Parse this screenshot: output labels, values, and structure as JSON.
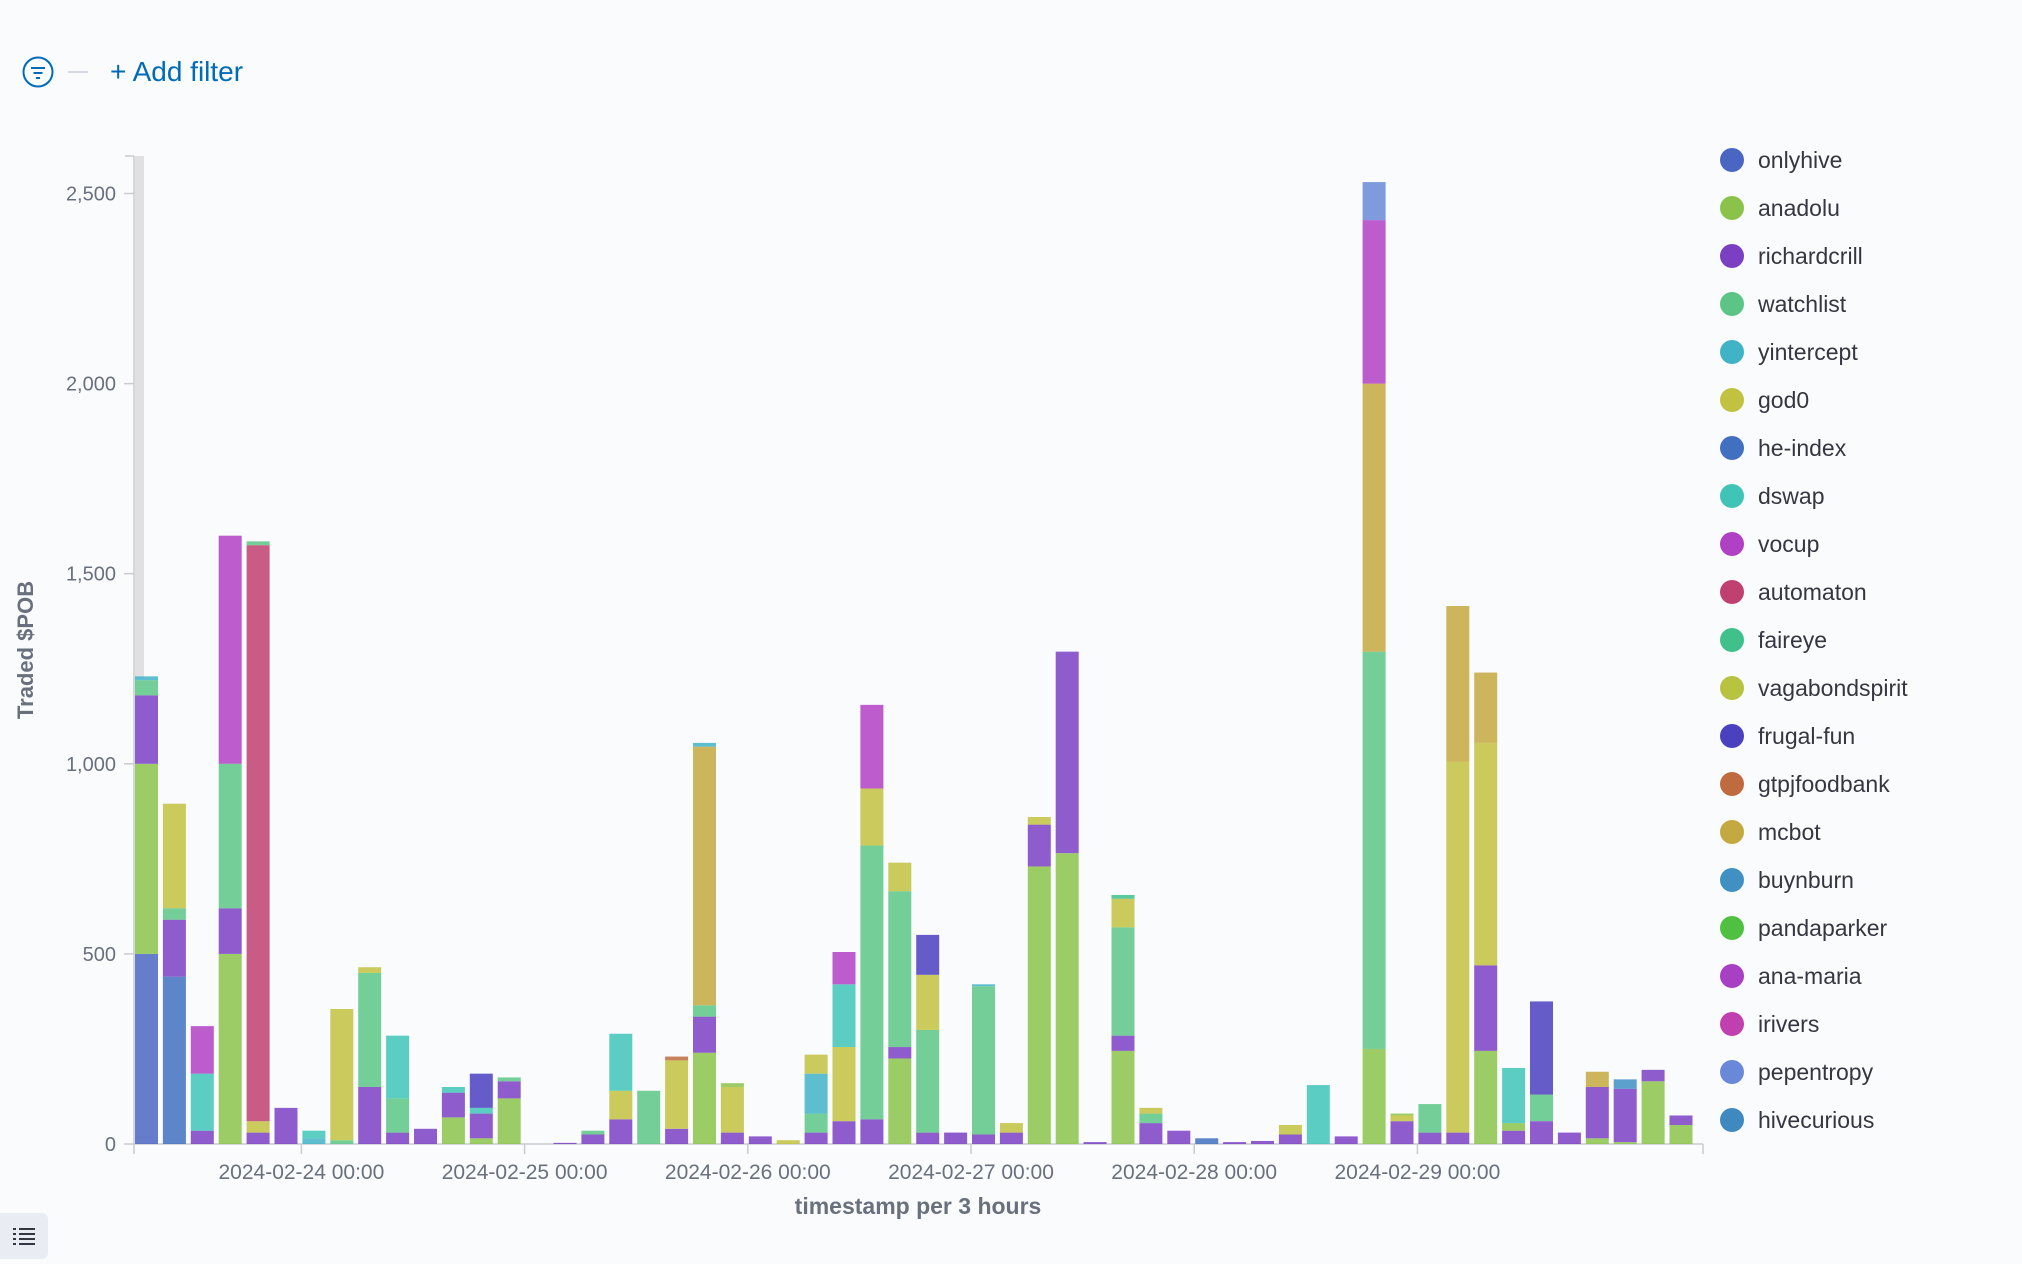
{
  "filter_bar": {
    "add_filter_label": "+ Add filter"
  },
  "chart_data": {
    "type": "bar",
    "stacked": true,
    "ylabel": "Traded $POB",
    "xlabel": "timestamp per 3 hours",
    "ylim": [
      0,
      2600
    ],
    "y_ticks": [
      0,
      500,
      1000,
      1500,
      2000,
      2500
    ],
    "y_tick_labels": [
      "0",
      "500",
      "1,000",
      "1,500",
      "2,000",
      "2,500"
    ],
    "x_start": "2024-02-23 06:00",
    "interval_hours": 3,
    "x_tick_labels": [
      "2024-02-24 00:00",
      "2024-02-25 00:00",
      "2024-02-26 00:00",
      "2024-02-27 00:00",
      "2024-02-28 00:00",
      "2024-02-29 00:00"
    ],
    "x_tick_bar_index": [
      6,
      14,
      22,
      30,
      38,
      46
    ],
    "legend_position": "right",
    "series": [
      {
        "name": "onlyhive",
        "color": "#4a66c2"
      },
      {
        "name": "anadolu",
        "color": "#8bc34a"
      },
      {
        "name": "richardcrill",
        "color": "#7b3fc4"
      },
      {
        "name": "watchlist",
        "color": "#5cc585"
      },
      {
        "name": "yintercept",
        "color": "#40b3c6"
      },
      {
        "name": "god0",
        "color": "#c1c23f"
      },
      {
        "name": "he-index",
        "color": "#4170c0"
      },
      {
        "name": "dswap",
        "color": "#40c4b8"
      },
      {
        "name": "vocup",
        "color": "#b040c4"
      },
      {
        "name": "automaton",
        "color": "#c04070"
      },
      {
        "name": "faireye",
        "color": "#40c08a"
      },
      {
        "name": "vagabondspirit",
        "color": "#b8c440"
      },
      {
        "name": "frugal-fun",
        "color": "#4a40c0"
      },
      {
        "name": "gtpjfoodbank",
        "color": "#c06a40"
      },
      {
        "name": "mcbot",
        "color": "#c4a840"
      },
      {
        "name": "buynburn",
        "color": "#4090c4"
      },
      {
        "name": "pandaparker",
        "color": "#50c040"
      },
      {
        "name": "ana-maria",
        "color": "#a840c4"
      },
      {
        "name": "irivers",
        "color": "#c040b0"
      },
      {
        "name": "pepentropy",
        "color": "#6a88d8"
      },
      {
        "name": "hivecurious",
        "color": "#4088c0"
      }
    ],
    "bars": [
      {
        "onlyhive": 500,
        "anadolu": 500,
        "richardcrill": 180,
        "watchlist": 40,
        "yintercept": 10
      },
      {
        "he-index": 440,
        "richardcrill": 150,
        "watchlist": 30,
        "god0": 275
      },
      {
        "richardcrill": 35,
        "dswap": 150,
        "vocup": 125
      },
      {
        "anadolu": 500,
        "richardcrill": 120,
        "watchlist": 380,
        "vocup": 600
      },
      {
        "richardcrill": 30,
        "god0": 30,
        "automaton": 1515,
        "watchlist": 10
      },
      {
        "richardcrill": 95
      },
      {
        "yintercept": 15,
        "dswap": 20
      },
      {
        "watchlist": 10,
        "god0": 345
      },
      {
        "richardcrill": 150,
        "watchlist": 300,
        "god0": 15
      },
      {
        "richardcrill": 30,
        "watchlist": 90,
        "dswap": 165
      },
      {
        "richardcrill": 40
      },
      {
        "anadolu": 70,
        "richardcrill": 65,
        "dswap": 15
      },
      {
        "anadolu": 15,
        "richardcrill": 65,
        "dswap": 15,
        "frugal-fun": 90
      },
      {
        "anadolu": 120,
        "richardcrill": 45,
        "watchlist": 10
      },
      {},
      {
        "richardcrill": 3
      },
      {
        "richardcrill": 25,
        "watchlist": 10
      },
      {
        "richardcrill": 65,
        "god0": 75,
        "dswap": 150
      },
      {
        "watchlist": 140
      },
      {
        "richardcrill": 40,
        "god0": 180,
        "gtpjfoodbank": 10
      },
      {
        "anadolu": 240,
        "richardcrill": 95,
        "watchlist": 30,
        "mcbot": 680,
        "yintercept": 10
      },
      {
        "richardcrill": 30,
        "god0": 120,
        "anadolu": 10
      },
      {
        "richardcrill": 20
      },
      {
        "god0": 10
      },
      {
        "richardcrill": 30,
        "watchlist": 50,
        "yintercept": 105,
        "god0": 50
      },
      {
        "richardcrill": 60,
        "god0": 195,
        "dswap": 165,
        "vocup": 85
      },
      {
        "richardcrill": 65,
        "watchlist": 720,
        "god0": 150,
        "vocup": 220
      },
      {
        "anadolu": 225,
        "richardcrill": 30,
        "watchlist": 410,
        "god0": 75
      },
      {
        "richardcrill": 30,
        "watchlist": 270,
        "god0": 145,
        "frugal-fun": 105
      },
      {
        "richardcrill": 30
      },
      {
        "richardcrill": 25,
        "watchlist": 390,
        "yintercept": 5
      },
      {
        "richardcrill": 30,
        "god0": 25
      },
      {
        "anadolu": 730,
        "richardcrill": 110,
        "god0": 20
      },
      {
        "anadolu": 765,
        "richardcrill": 530
      },
      {
        "richardcrill": 5
      },
      {
        "anadolu": 245,
        "richardcrill": 40,
        "watchlist": 285,
        "god0": 75,
        "faireye": 10
      },
      {
        "richardcrill": 55,
        "watchlist": 25,
        "god0": 15
      },
      {
        "richardcrill": 35
      },
      {
        "he-index": 15
      },
      {
        "richardcrill": 5
      },
      {
        "richardcrill": 8
      },
      {
        "richardcrill": 25,
        "god0": 25
      },
      {
        "dswap": 155
      },
      {
        "richardcrill": 20
      },
      {
        "anadolu": 250,
        "watchlist": 1045,
        "mcbot": 705,
        "vocup": 430,
        "pepentropy": 100
      },
      {
        "richardcrill": 60,
        "god0": 15,
        "anadolu": 5
      },
      {
        "richardcrill": 30,
        "watchlist": 75
      },
      {
        "richardcrill": 30,
        "god0": 975,
        "mcbot": 410
      },
      {
        "anadolu": 245,
        "richardcrill": 225,
        "god0": 585,
        "mcbot": 185
      },
      {
        "richardcrill": 35,
        "anadolu": 20,
        "dswap": 145
      },
      {
        "richardcrill": 60,
        "watchlist": 70,
        "frugal-fun": 245
      },
      {
        "richardcrill": 30
      },
      {
        "anadolu": 15,
        "richardcrill": 135,
        "mcbot": 40
      },
      {
        "anadolu": 5,
        "richardcrill": 140,
        "buynburn": 25
      },
      {
        "anadolu": 165,
        "richardcrill": 30
      },
      {
        "anadolu": 50,
        "richardcrill": 25
      }
    ]
  }
}
